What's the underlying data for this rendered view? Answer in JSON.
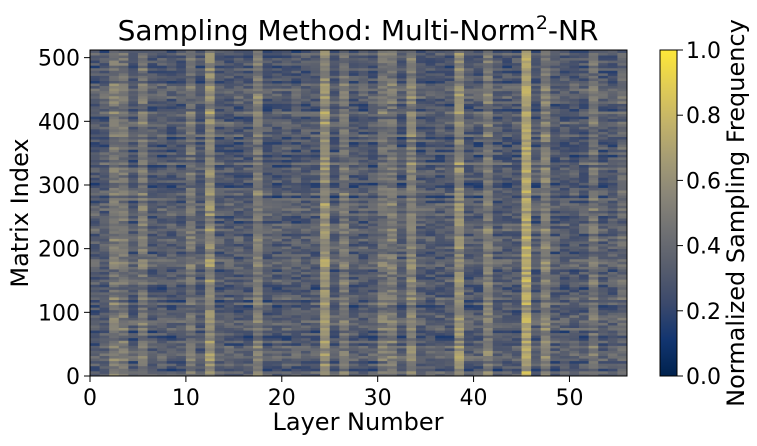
{
  "chart_data": {
    "type": "heatmap",
    "title_prefix": "Sampling Method: Multi-Norm",
    "title_superscript": "2",
    "title_suffix": "-NR",
    "xlabel": "Layer Number",
    "ylabel": "Matrix Index",
    "xlim": [
      0,
      56
    ],
    "ylim": [
      0,
      512
    ],
    "x_ticks": [
      0,
      10,
      20,
      30,
      40,
      50
    ],
    "y_ticks": [
      0,
      100,
      200,
      300,
      400,
      500
    ],
    "grid": false,
    "n_layers": 56,
    "n_rows": 512,
    "colormap": "cividis",
    "colormap_stops": [
      "#00224e",
      "#123570",
      "#3b496c",
      "#575d6d",
      "#707173",
      "#8a8678",
      "#a59c74",
      "#c3b369",
      "#e1cc55",
      "#fee838"
    ],
    "value_range": [
      0.0,
      1.0
    ],
    "baseline_level": 0.32,
    "column_levels": [
      {
        "layer": 2,
        "level": 0.48
      },
      {
        "layer": 3,
        "level": 0.46
      },
      {
        "layer": 5,
        "level": 0.47
      },
      {
        "layer": 10,
        "level": 0.45
      },
      {
        "layer": 12,
        "level": 0.58
      },
      {
        "layer": 17,
        "level": 0.5
      },
      {
        "layer": 24,
        "level": 0.6
      },
      {
        "layer": 26,
        "level": 0.46
      },
      {
        "layer": 30,
        "level": 0.45
      },
      {
        "layer": 31,
        "level": 0.48
      },
      {
        "layer": 33,
        "level": 0.52
      },
      {
        "layer": 38,
        "level": 0.58
      },
      {
        "layer": 41,
        "level": 0.5
      },
      {
        "layer": 45,
        "level": 0.7
      },
      {
        "layer": 47,
        "level": 0.52
      },
      {
        "layer": 52,
        "level": 0.45
      },
      {
        "layer": 55,
        "level": 0.4
      }
    ]
  },
  "colorbar": {
    "label": "Normalized Sampling  Frequency",
    "ticks": [
      "0.0",
      "0.2",
      "0.4",
      "0.6",
      "0.8",
      "1.0"
    ],
    "tick_values": [
      0.0,
      0.2,
      0.4,
      0.6,
      0.8,
      1.0
    ]
  }
}
